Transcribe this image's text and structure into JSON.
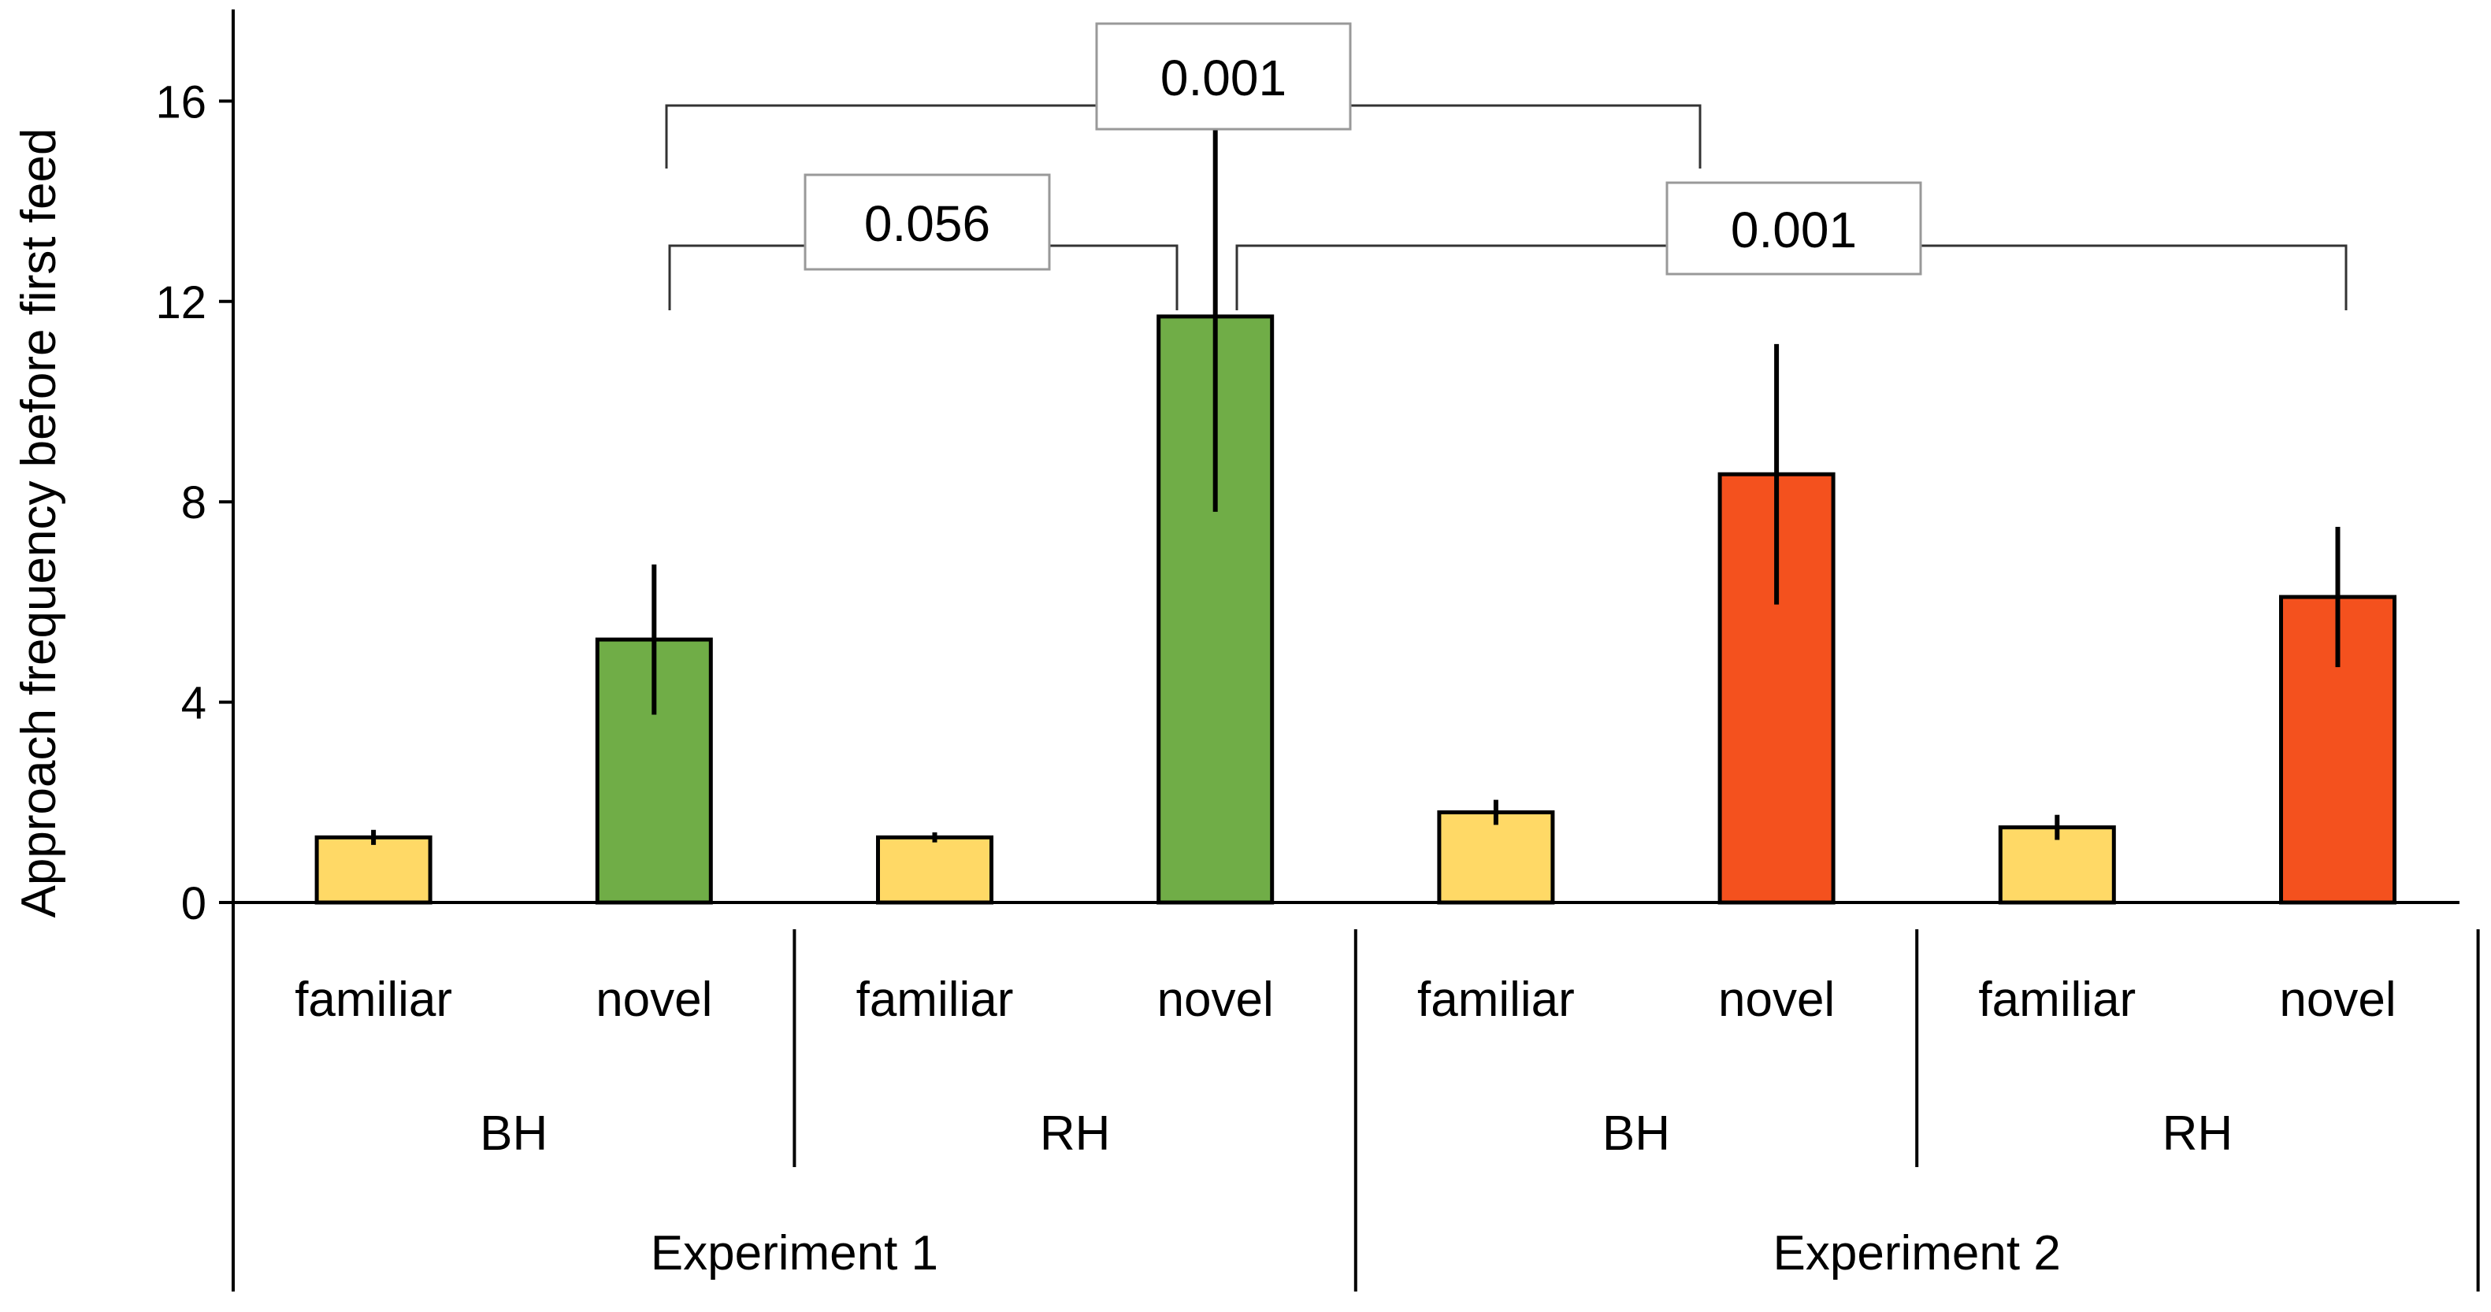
{
  "chart_data": {
    "type": "bar",
    "ylabel": "Approach frequency before first feed",
    "ylim": [
      0,
      16
    ],
    "yticks": [
      "0",
      "4",
      "8",
      "12",
      "16"
    ],
    "grid": false,
    "bars": [
      {
        "category": "familiar",
        "value": 1.3,
        "error": 0.15,
        "color": "#FFD966"
      },
      {
        "category": "novel",
        "value": 5.25,
        "error": 1.5,
        "color": "#70AD47"
      },
      {
        "category": "familiar",
        "value": 1.3,
        "error": 0.1,
        "color": "#FFD966"
      },
      {
        "category": "novel",
        "value": 11.7,
        "error": 3.9,
        "color": "#70AD47"
      },
      {
        "category": "familiar",
        "value": 1.8,
        "error": 0.25,
        "color": "#FFD966"
      },
      {
        "category": "novel",
        "value": 8.55,
        "error": 2.6,
        "color": "#F4511E"
      },
      {
        "category": "familiar",
        "value": 1.5,
        "error": 0.25,
        "color": "#FFD966"
      },
      {
        "category": "novel",
        "value": 6.1,
        "error": 1.4,
        "color": "#F4511E"
      }
    ],
    "groups": [
      "BH",
      "RH",
      "BH",
      "RH"
    ],
    "experiments": [
      "Experiment 1",
      "Experiment 2"
    ],
    "comparisons": [
      {
        "from": 1,
        "to": 5,
        "label": "0.001"
      },
      {
        "from": 1,
        "to": 3,
        "label": "0.056"
      },
      {
        "from": 3,
        "to": 7,
        "label": "0.001"
      }
    ]
  }
}
